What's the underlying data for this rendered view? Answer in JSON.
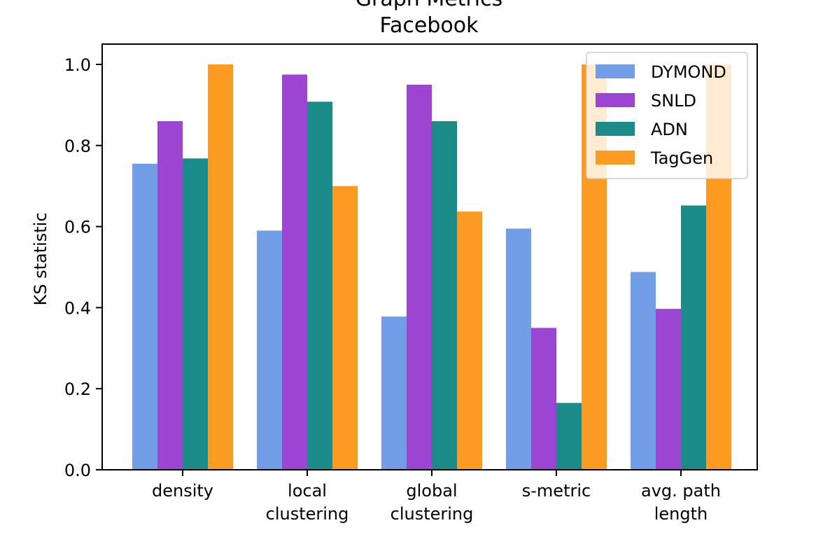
{
  "chart_data": {
    "type": "bar",
    "title_lines": [
      "Graph Metrics",
      "Facebook"
    ],
    "ylabel": "KS statistic",
    "xlabel": "",
    "ylim": [
      0,
      1.0
    ],
    "yticks": [
      0.0,
      0.2,
      0.4,
      0.6,
      0.8,
      1.0
    ],
    "ytick_labels": [
      "0.0",
      "0.2",
      "0.4",
      "0.6",
      "0.8",
      "1.0"
    ],
    "categories": [
      [
        "density"
      ],
      [
        "local",
        "clustering"
      ],
      [
        "global",
        "clustering"
      ],
      [
        "s-metric"
      ],
      [
        "avg. path",
        "length"
      ]
    ],
    "series": [
      {
        "name": "DYMOND",
        "color": "#729ee8",
        "values": [
          0.755,
          0.59,
          0.378,
          0.595,
          0.488
        ]
      },
      {
        "name": "SNLD",
        "color": "#9b45d2",
        "values": [
          0.86,
          0.975,
          0.95,
          0.35,
          0.397
        ]
      },
      {
        "name": "ADN",
        "color": "#1b8b89",
        "values": [
          0.768,
          0.908,
          0.86,
          0.165,
          0.652
        ]
      },
      {
        "name": "TagGen",
        "color": "#fb9b22",
        "values": [
          1.0,
          0.7,
          0.637,
          1.0,
          1.0
        ]
      }
    ],
    "legend_position": "top-right",
    "grid": false
  }
}
